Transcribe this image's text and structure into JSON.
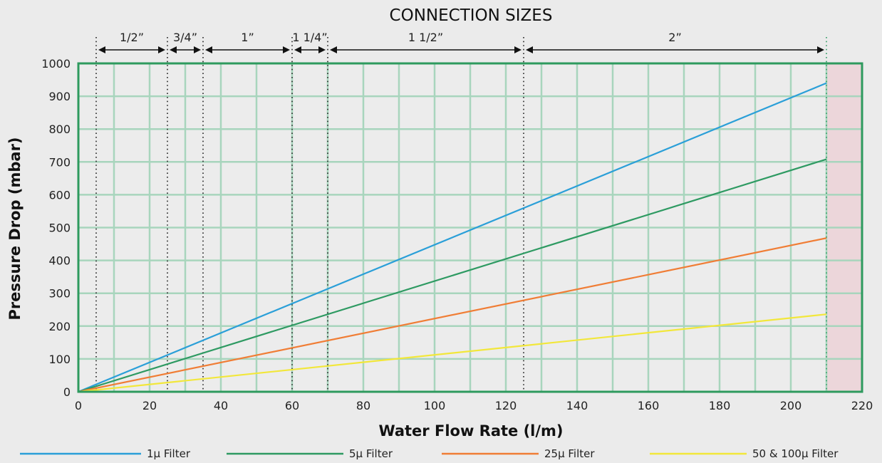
{
  "chart_data": {
    "type": "line",
    "title": "CONNECTION SIZES",
    "xlabel": "Water Flow Rate (l/m)",
    "ylabel": "Pressure Drop (mbar)",
    "xlim": [
      0,
      220
    ],
    "ylim": [
      0,
      1000
    ],
    "x_ticks": [
      0,
      20,
      40,
      60,
      80,
      100,
      120,
      140,
      160,
      180,
      200,
      220
    ],
    "y_ticks": [
      0,
      100,
      200,
      300,
      400,
      500,
      600,
      700,
      800,
      900,
      1000
    ],
    "grid": true,
    "legend_position": "bottom",
    "shaded_region": {
      "x_from": 210,
      "x_to": 220,
      "color": "#ecd6da"
    },
    "frame_color": "#2e9a5e",
    "grid_color": "#a8d5bd",
    "series": [
      {
        "name": "1μ Filter",
        "color": "#2a9fd8",
        "x": [
          0,
          210
        ],
        "y": [
          0,
          940
        ]
      },
      {
        "name": "5μ Filter",
        "color": "#2e9a62",
        "x": [
          0,
          210
        ],
        "y": [
          0,
          708
        ]
      },
      {
        "name": "25μ Filter",
        "color": "#f07d35",
        "x": [
          0,
          210
        ],
        "y": [
          0,
          468
        ]
      },
      {
        "name": "50 & 100μ Filter",
        "color": "#f2e73a",
        "x": [
          0,
          210
        ],
        "y": [
          0,
          236
        ]
      }
    ],
    "connection_sizes": [
      {
        "label": "1/2”",
        "from": 5,
        "to": 25
      },
      {
        "label": "3/4”",
        "from": 25,
        "to": 35
      },
      {
        "label": "1”",
        "from": 35,
        "to": 60
      },
      {
        "label": "1 1/4”",
        "from": 60,
        "to": 70
      },
      {
        "label": "1 1/2”",
        "from": 70,
        "to": 125
      },
      {
        "label": "2”",
        "from": 125,
        "to": 210
      }
    ]
  }
}
